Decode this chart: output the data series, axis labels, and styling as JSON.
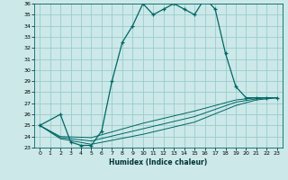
{
  "xlabel": "Humidex (Indice chaleur)",
  "bg_color": "#cce8e8",
  "grid_color": "#99cccc",
  "line_color": "#006666",
  "xlim": [
    -0.5,
    23.5
  ],
  "ylim": [
    23,
    36
  ],
  "xticks": [
    0,
    1,
    2,
    3,
    4,
    5,
    6,
    7,
    8,
    9,
    10,
    11,
    12,
    13,
    14,
    15,
    16,
    17,
    18,
    19,
    20,
    21,
    22,
    23
  ],
  "yticks": [
    23,
    24,
    25,
    26,
    27,
    28,
    29,
    30,
    31,
    32,
    33,
    34,
    35,
    36
  ],
  "main_curve_x": [
    0,
    2,
    3,
    4,
    5,
    6,
    7,
    8,
    9,
    10,
    11,
    12,
    13,
    14,
    15,
    16,
    17,
    18,
    19,
    20,
    21,
    22,
    23
  ],
  "main_curve_y": [
    25.0,
    26.0,
    23.5,
    23.2,
    23.2,
    24.5,
    29.0,
    32.5,
    34.0,
    36.0,
    35.0,
    35.5,
    36.0,
    35.5,
    35.0,
    36.5,
    35.5,
    31.5,
    28.5,
    27.5,
    27.5,
    27.5,
    27.5
  ],
  "line2_x": [
    0,
    2,
    5,
    10,
    15,
    19,
    21,
    22,
    23
  ],
  "line2_y": [
    25.0,
    23.8,
    23.3,
    24.2,
    25.3,
    26.8,
    27.3,
    27.4,
    27.5
  ],
  "line3_x": [
    0,
    2,
    5,
    10,
    15,
    19,
    21,
    22,
    23
  ],
  "line3_y": [
    25.0,
    23.9,
    23.6,
    24.7,
    25.8,
    27.1,
    27.4,
    27.5,
    27.5
  ],
  "line4_x": [
    0,
    2,
    5,
    10,
    15,
    19,
    21,
    22,
    23
  ],
  "line4_y": [
    25.0,
    24.0,
    23.9,
    25.2,
    26.3,
    27.3,
    27.5,
    27.5,
    27.5
  ]
}
